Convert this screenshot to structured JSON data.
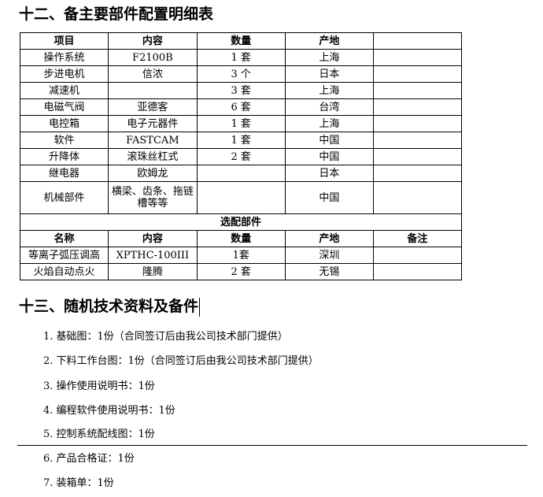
{
  "section12": {
    "title": "十二、备主要部件配置明细表"
  },
  "table": {
    "header": [
      "项目",
      "内容",
      "数量",
      "产地",
      ""
    ],
    "rows": [
      [
        "操作系统",
        "F2100B",
        "1 套",
        "上海",
        ""
      ],
      [
        "步进电机",
        "信浓",
        "3 个",
        "日本",
        ""
      ],
      [
        "减速机",
        "",
        "3 套",
        "上海",
        ""
      ],
      [
        "电磁气阀",
        "亚德客",
        "6 套",
        "台湾",
        ""
      ],
      [
        "电控箱",
        "电子元器件",
        "1 套",
        "上海",
        ""
      ],
      [
        "软件",
        "FASTCAM",
        "1 套",
        "中国",
        ""
      ],
      [
        "升降体",
        "滚珠丝杠式",
        "2 套",
        "中国",
        ""
      ],
      [
        "继电器",
        "欧姆龙",
        "",
        "日本",
        ""
      ],
      [
        "机械部件",
        "横梁、齿条、拖链槽等等",
        "",
        "中国",
        ""
      ]
    ],
    "optional_title": "选配部件",
    "optional_header": [
      "名称",
      "内容",
      "数量",
      "产地",
      "备注"
    ],
    "optional_rows": [
      [
        "等离子弧压调高",
        "XPTHC-100III",
        "1套",
        "深圳",
        ""
      ],
      [
        "火焰自动点火",
        "隆腾",
        "2 套",
        "无锡",
        ""
      ]
    ]
  },
  "section13": {
    "title": "十三、随机技术资料及备件",
    "items": [
      "1. 基础图：1份（合同签订后由我公司技术部门提供）",
      "2. 下料工作台图：1份（合同签订后由我公司技术部门提供）",
      "3. 操作使用说明书：1份",
      "4. 编程软件使用说明书：1份",
      "5. 控制系统配线图：1份",
      "6. 产品合格证：1份",
      "7. 装箱单：1份"
    ]
  }
}
